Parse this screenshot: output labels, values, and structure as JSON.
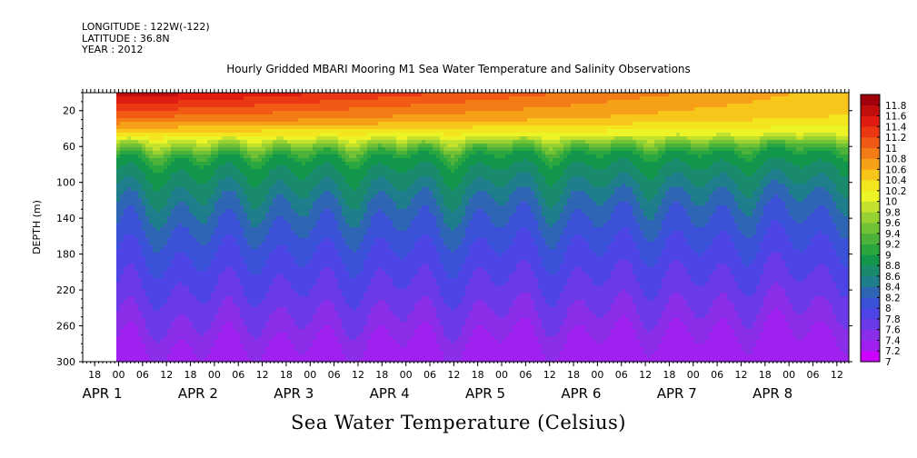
{
  "header": {
    "longitude": "LONGITUDE : 122W(-122)",
    "latitude": "LATITUDE : 36.8N",
    "year": "YEAR : 2012"
  },
  "chart_data": {
    "type": "heatmap",
    "title": "Hourly Gridded MBARI Mooring M1 Sea Water Temperature and Salinity Observations",
    "subtitle": "Sea Water Temperature (Celsius)",
    "ylabel": "DEPTH (m)",
    "ylim": [
      300,
      0
    ],
    "y_reversed": true,
    "y_ticks": [
      20,
      60,
      100,
      140,
      180,
      220,
      260,
      300
    ],
    "x_hour_ticks": [
      "18",
      "00",
      "06",
      "12",
      "18",
      "00",
      "06",
      "12",
      "18",
      "00",
      "06",
      "12",
      "18",
      "00",
      "06",
      "12",
      "18",
      "00",
      "06",
      "12",
      "18",
      "00",
      "06",
      "12",
      "18",
      "00",
      "06",
      "12",
      "18",
      "00",
      "06",
      "12"
    ],
    "x_day_labels": [
      "APR 1",
      "APR 2",
      "APR 3",
      "APR 4",
      "APR 5",
      "APR 6",
      "APR 7",
      "APR 8"
    ],
    "x_start": "2012-03-31 18:00",
    "data_start": "2012-04-01 00:00",
    "colorbar": {
      "levels": [
        "7",
        "7.2",
        "7.4",
        "7.6",
        "7.8",
        "8",
        "8.2",
        "8.4",
        "8.6",
        "8.8",
        "9",
        "9.2",
        "9.4",
        "9.6",
        "9.8",
        "10",
        "10.2",
        "10.4",
        "10.6",
        "10.8",
        "11",
        "11.2",
        "11.4",
        "11.6",
        "11.8"
      ],
      "colors": [
        "#cc00ff",
        "#a020f0",
        "#8a2ee8",
        "#6a3ae8",
        "#4c44e4",
        "#3a52d8",
        "#2e66b4",
        "#1e7e8c",
        "#1a8a6c",
        "#12964c",
        "#2aa63e",
        "#4cb23a",
        "#72c236",
        "#98d232",
        "#c2e22e",
        "#ecf428",
        "#f4e61e",
        "#f8c61a",
        "#f6a018",
        "#f47c16",
        "#f05a14",
        "#ec3812",
        "#e01c10",
        "#c00e0c",
        "#a0000a"
      ]
    },
    "surface_layer_top_temp_range_C": [
      10.2,
      11.8
    ],
    "thermocline_depth_m": [
      40,
      70
    ],
    "bottom_temp_C": 7.2
  }
}
